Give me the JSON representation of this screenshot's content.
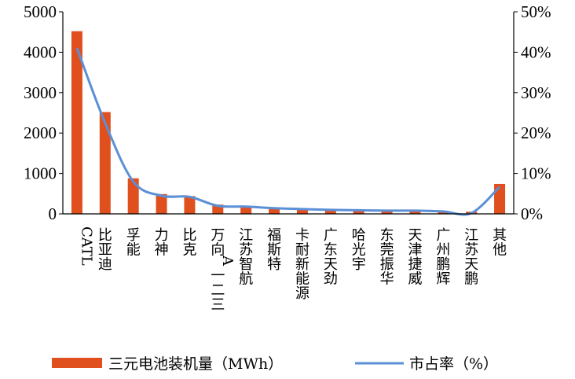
{
  "chart_data": {
    "type": "bar",
    "categories": [
      "CATL",
      "比亚迪",
      "孚能",
      "力神",
      "比克",
      "万向A一二三",
      "江苏智航",
      "福斯特",
      "卡耐新能源",
      "广东天劲",
      "哈光宇",
      "东莞振华",
      "天津捷威",
      "广州鹏辉",
      "江苏天鹏",
      "其他"
    ],
    "series": [
      {
        "name": "三元电池装机量（MWh）",
        "type": "bar",
        "axis": "left",
        "color": "#e0501f",
        "values": [
          4520,
          2520,
          880,
          490,
          440,
          230,
          200,
          150,
          130,
          110,
          100,
          90,
          85,
          70,
          55,
          740
        ]
      },
      {
        "name": "市占率（%）",
        "type": "line",
        "axis": "right",
        "color": "#5b8fd6",
        "values": [
          41.0,
          22.5,
          8.0,
          4.5,
          4.2,
          2.0,
          1.8,
          1.4,
          1.2,
          1.0,
          0.9,
          0.8,
          0.8,
          0.6,
          0.2,
          6.7
        ]
      }
    ],
    "y_left": {
      "min": 0,
      "max": 5000,
      "ticks": [
        0,
        1000,
        2000,
        3000,
        4000,
        5000
      ]
    },
    "y_right": {
      "min": 0,
      "max": 50,
      "ticks": [
        "0%",
        "10%",
        "20%",
        "30%",
        "40%",
        "50%"
      ]
    },
    "legend_position": "bottom"
  }
}
